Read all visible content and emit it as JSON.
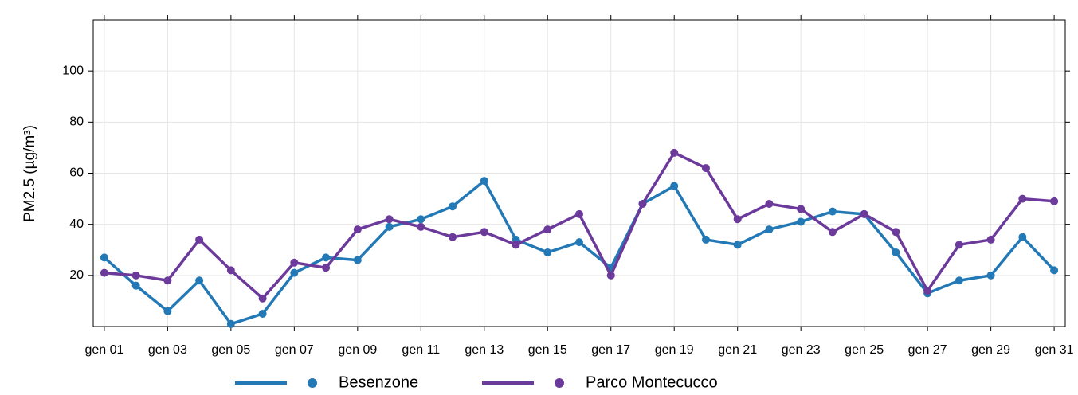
{
  "chart_data": {
    "type": "line",
    "y_label": "PM2.5 (µg/m³)",
    "categories": [
      "gen 01",
      null,
      "gen 03",
      null,
      "gen 05",
      null,
      "gen 07",
      null,
      "gen 09",
      null,
      "gen 11",
      null,
      "gen 13",
      null,
      "gen 15",
      null,
      "gen 17",
      null,
      "gen 19",
      null,
      "gen 21",
      null,
      "gen 23",
      null,
      "gen 25",
      null,
      "gen 27",
      null,
      "gen 29",
      null,
      "gen 31"
    ],
    "series": [
      {
        "name": "Besenzone",
        "color": "#2279b5",
        "values": [
          27,
          16,
          6,
          18,
          1,
          5,
          21,
          27,
          26,
          39,
          42,
          47,
          57,
          34,
          29,
          33,
          23,
          48,
          55,
          34,
          32,
          38,
          41,
          45,
          44,
          29,
          13,
          18,
          20,
          35,
          22
        ]
      },
      {
        "name": "Parco Montecucco",
        "color": "#6b3a9b",
        "values": [
          21,
          20,
          18,
          34,
          22,
          11,
          25,
          23,
          38,
          42,
          39,
          35,
          37,
          32,
          38,
          44,
          20,
          48,
          68,
          62,
          42,
          48,
          46,
          37,
          44,
          37,
          14,
          32,
          34,
          50,
          49
        ]
      }
    ],
    "ylim": [
      0,
      120
    ],
    "yticks": [
      20,
      40,
      60,
      80,
      100
    ],
    "grid": true,
    "legend": "bottom"
  }
}
